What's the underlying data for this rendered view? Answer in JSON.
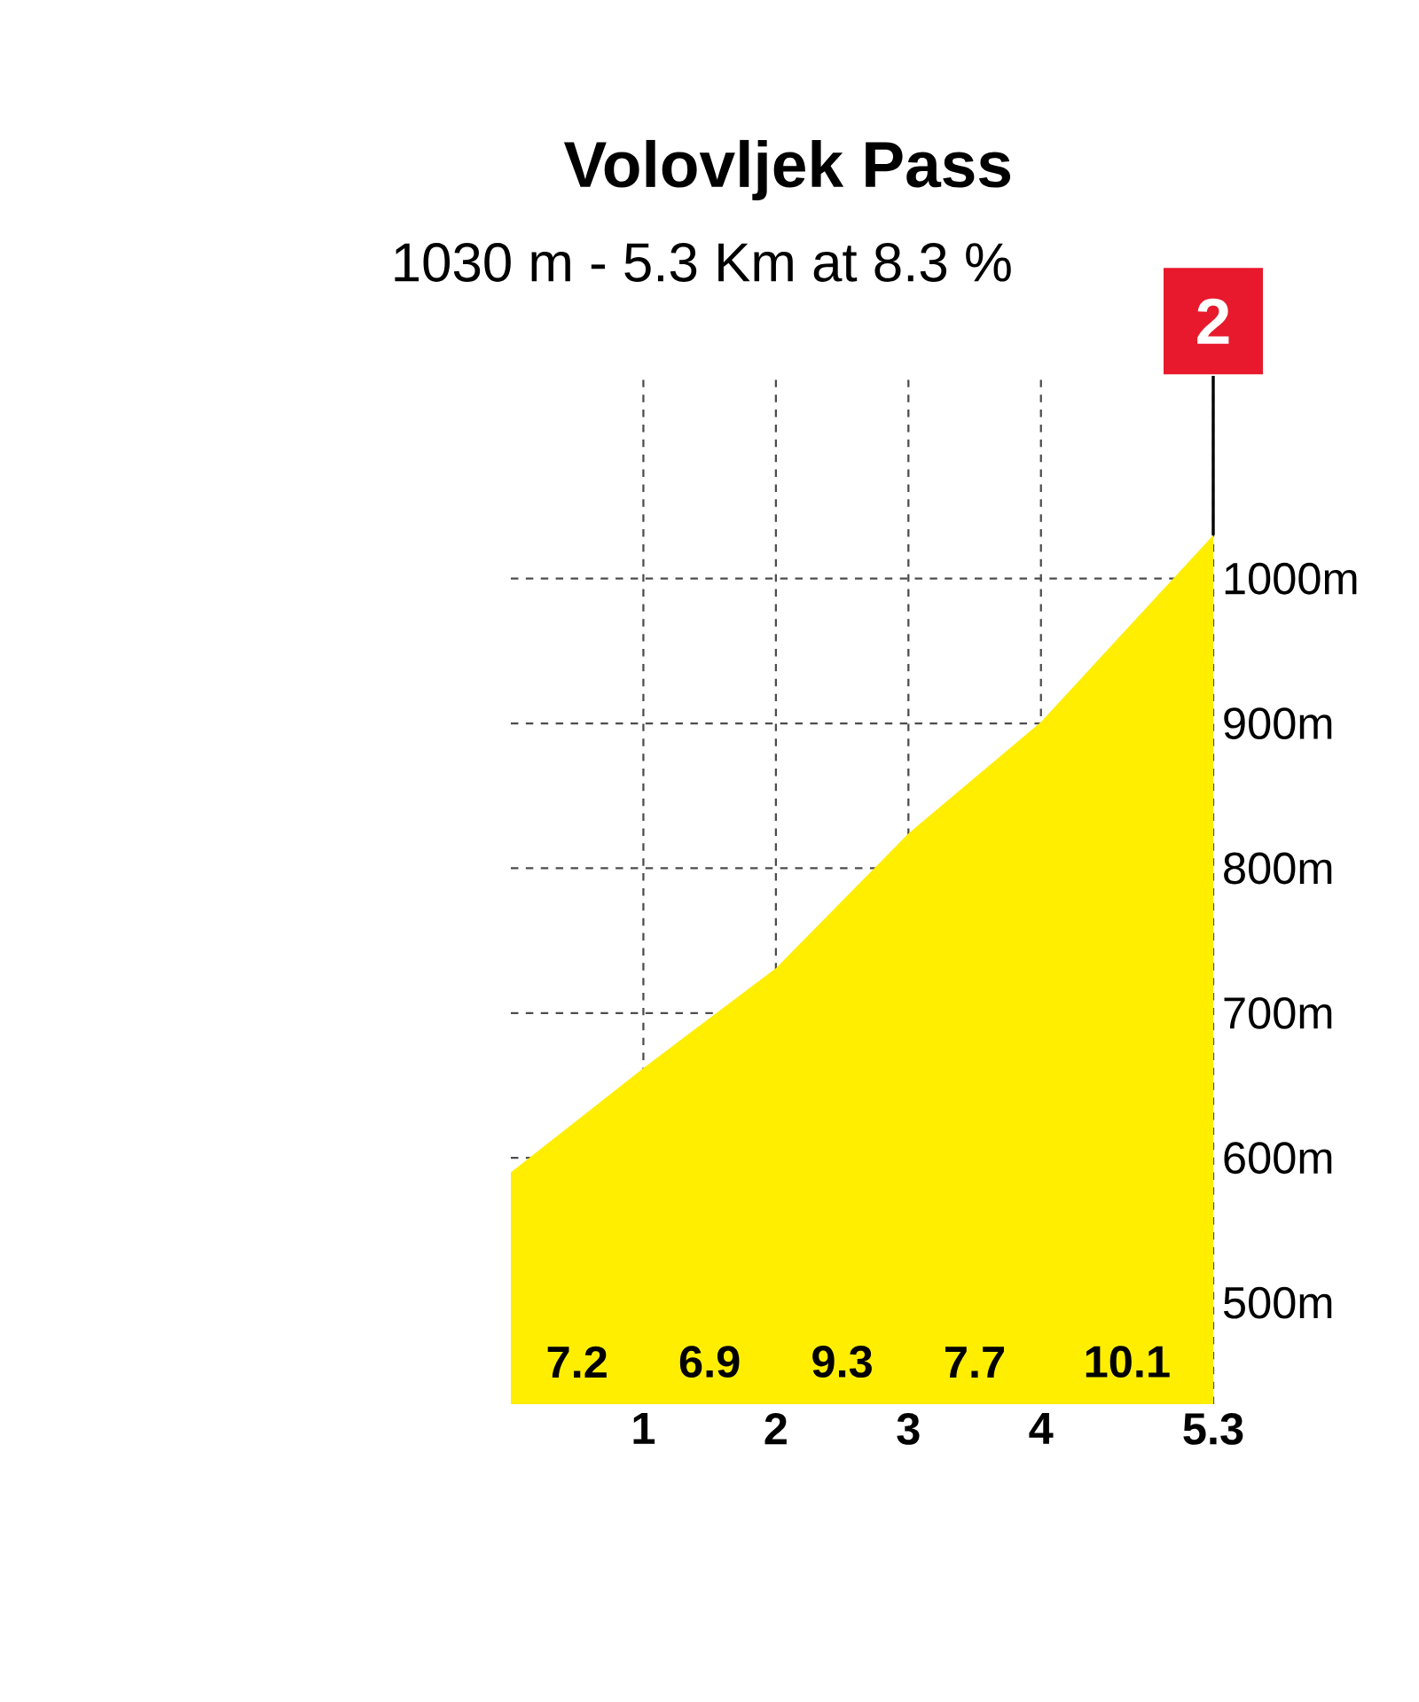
{
  "chart_data": {
    "type": "area",
    "title": "Volovljek Pass",
    "subtitle": "1030 m - 5.3 Km at 8.3 %",
    "x": [
      0,
      1,
      2,
      3,
      4,
      5.3
    ],
    "series": [
      {
        "type": "area",
        "color": "#ffee00",
        "values": [
          590,
          662,
          731,
          824,
          901,
          1030
        ]
      }
    ],
    "xlim": [
      0,
      5.3
    ],
    "xticks": [
      1,
      2,
      3,
      4,
      5.3
    ],
    "ylim": [
      430,
      1140
    ],
    "yticks": [
      {
        "value": 500,
        "label": "500m"
      },
      {
        "value": 600,
        "label": "600m"
      },
      {
        "value": 700,
        "label": "700m"
      },
      {
        "value": 800,
        "label": "800m"
      },
      {
        "value": 900,
        "label": "900m"
      },
      {
        "value": 1000,
        "label": "1000m"
      }
    ],
    "grid": true,
    "annotations": [
      "7.2",
      "6.9",
      "9.3",
      "7.7",
      "10.1",
      {
        "text": "2",
        "x": 5.3,
        "y": 1030
      }
    ]
  }
}
